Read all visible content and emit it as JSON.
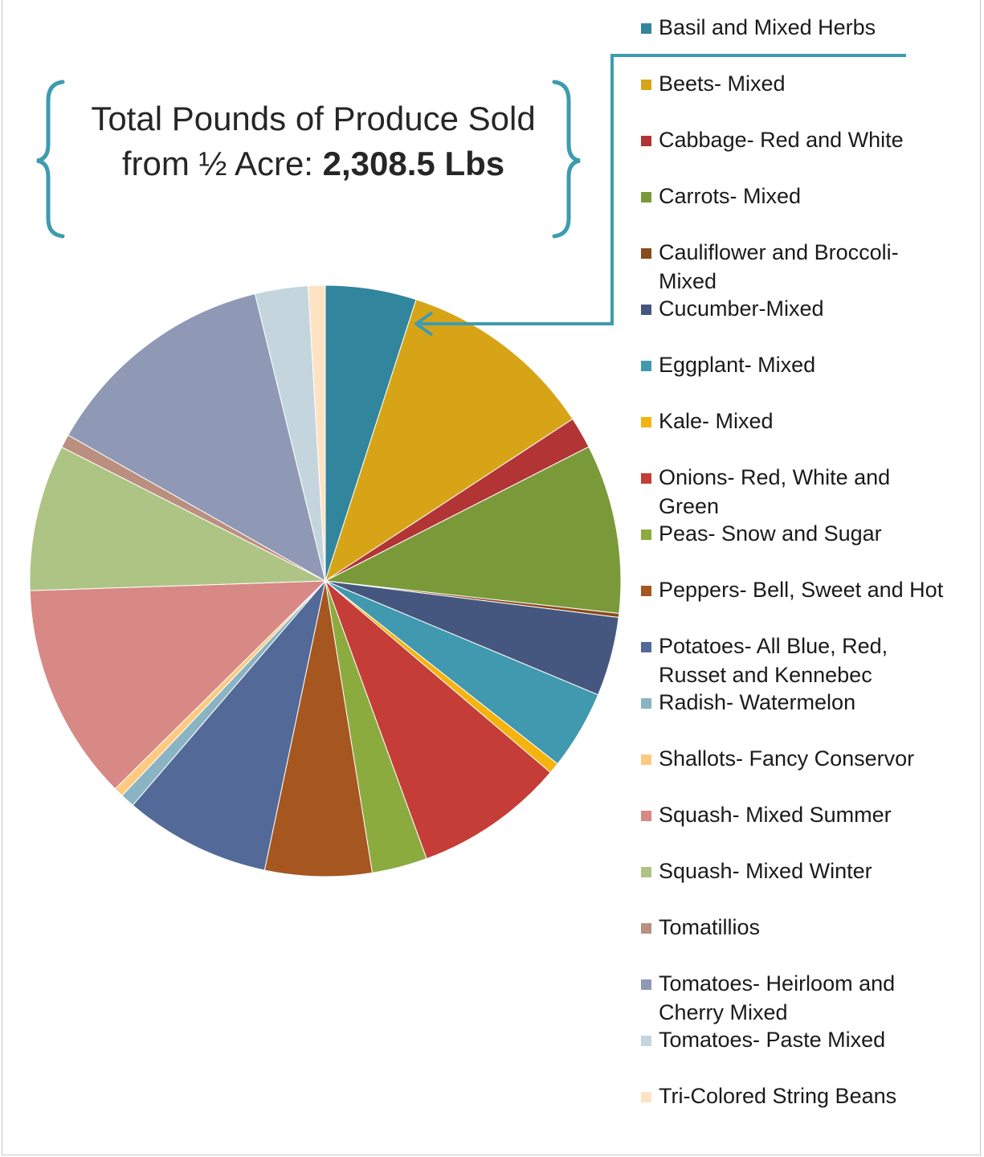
{
  "title": {
    "line1": "Total Pounds of Produce Sold",
    "line2_prefix": "from ½ Acre: ",
    "total": "2,308.5 Lbs"
  },
  "callout_color": "#3e9bb0",
  "chart_data": {
    "type": "pie",
    "unit": "Lbs",
    "total": 2308.5,
    "slices": [
      {
        "label": "Basil and Mixed Herbs",
        "value": 115,
        "color": "#31859c"
      },
      {
        "label": "Beets- Mixed",
        "value": 250,
        "color": "#d8a417"
      },
      {
        "label": "Cabbage- Red and White",
        "value": 40,
        "color": "#b23435"
      },
      {
        "label": "Carrots- Mixed",
        "value": 214,
        "color": "#7a9a3a"
      },
      {
        "label": "Cauliflower and Broccoli-Mixed",
        "value": 5,
        "color": "#8b4a1c"
      },
      {
        "label": "Cucumber-Mixed",
        "value": 100,
        "color": "#46577f"
      },
      {
        "label": "Eggplant- Mixed",
        "value": 100,
        "color": "#4099ae"
      },
      {
        "label": "Kale- Mixed",
        "value": 14,
        "color": "#f5b30e"
      },
      {
        "label": "Onions- Red, White and Green",
        "value": 190,
        "color": "#c43d37"
      },
      {
        "label": "Peas- Snow and Sugar",
        "value": 70,
        "color": "#8cab3f"
      },
      {
        "label": "Peppers- Bell, Sweet and Hot",
        "value": 135,
        "color": "#a6561f"
      },
      {
        "label": "Potatoes- All Blue, Red, Russet and Kennebec",
        "value": 185,
        "color": "#536a98"
      },
      {
        "label": "Radish- Watermelon",
        "value": 18,
        "color": "#8ab4c4"
      },
      {
        "label": "Shallots- Fancy Conservor",
        "value": 12,
        "color": "#fdca80"
      },
      {
        "label": "Squash- Mixed Summer",
        "value": 275,
        "color": "#d88985"
      },
      {
        "label": "Squash- Mixed Winter",
        "value": 185,
        "color": "#aec484"
      },
      {
        "label": "Tomatillios",
        "value": 17,
        "color": "#bb8f7f"
      },
      {
        "label": "Tomatoes- Heirloom and Cherry Mixed",
        "value": 300,
        "color": "#8f99b5"
      },
      {
        "label": "Tomatoes- Paste  Mixed",
        "value": 67,
        "color": "#c4d5dd"
      },
      {
        "label": "Tri-Colored String Beans",
        "value": 21.5,
        "color": "#fde3c4"
      }
    ],
    "legend_position": "right"
  },
  "legend": [
    {
      "lines": [
        "Basil and Mixed Herbs"
      ]
    },
    {
      "lines": [
        "Beets- Mixed"
      ]
    },
    {
      "lines": [
        "Cabbage- Red and White"
      ]
    },
    {
      "lines": [
        "Carrots- Mixed"
      ]
    },
    {
      "lines": [
        "Cauliflower and Broccoli-",
        "Mixed"
      ]
    },
    {
      "lines": [
        "Cucumber-Mixed"
      ]
    },
    {
      "lines": [
        "Eggplant- Mixed"
      ]
    },
    {
      "lines": [
        "Kale- Mixed"
      ]
    },
    {
      "lines": [
        "Onions- Red, White and",
        "Green"
      ]
    },
    {
      "lines": [
        "Peas- Snow and Sugar"
      ]
    },
    {
      "lines": [
        "Peppers- Bell, Sweet and Hot"
      ]
    },
    {
      "lines": [
        "Potatoes- All Blue, Red,",
        "Russet and Kennebec"
      ]
    },
    {
      "lines": [
        "Radish- Watermelon"
      ]
    },
    {
      "lines": [
        "Shallots- Fancy Conservor"
      ]
    },
    {
      "lines": [
        "Squash- Mixed Summer"
      ]
    },
    {
      "lines": [
        "Squash- Mixed Winter"
      ]
    },
    {
      "lines": [
        "Tomatillios"
      ]
    },
    {
      "lines": [
        "Tomatoes- Heirloom and",
        "Cherry Mixed"
      ]
    },
    {
      "lines": [
        "Tomatoes- Paste  Mixed"
      ]
    },
    {
      "lines": [
        "Tri-Colored String Beans"
      ]
    }
  ]
}
